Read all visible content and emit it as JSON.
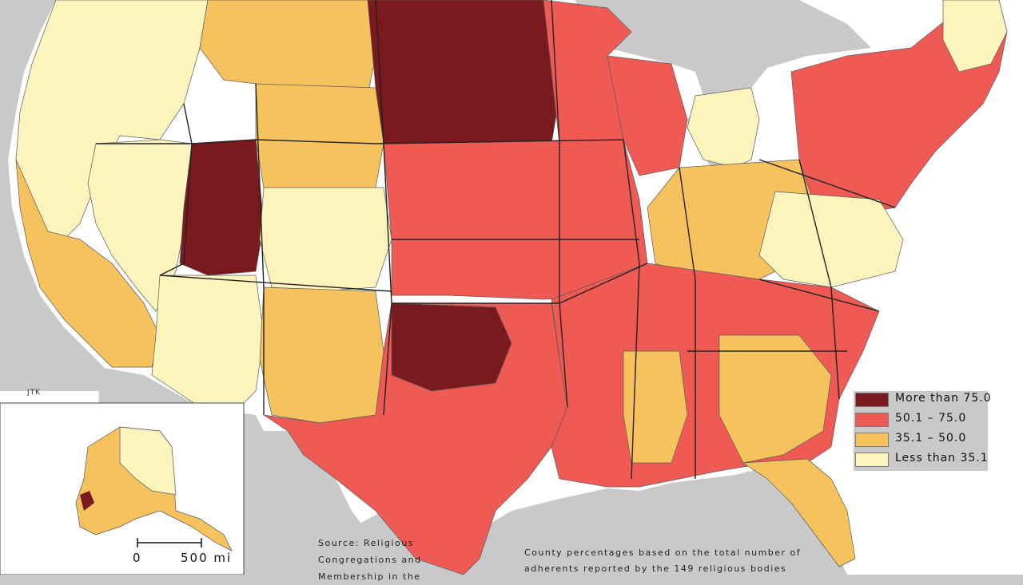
{
  "map": {
    "credit": "JTK",
    "legend": {
      "items": [
        {
          "label": "More than 75.0",
          "color": "#7b1a1e"
        },
        {
          "label": "50.1 – 75.0",
          "color": "#ef5a55"
        },
        {
          "label": "35.1 – 50.0",
          "color": "#f6c25e"
        },
        {
          "label": "Less than 35.1",
          "color": "#fcf4bd"
        }
      ]
    },
    "scale": {
      "zero": "0",
      "distance": "500 mi"
    },
    "source_note": "Source: Religious Congregations and Membership in the",
    "bottom_note": "County percentages based on the total number of adherents reported by the 149 religious bodies",
    "colors": {
      "water": "#c9c9c9",
      "land_background": "#ffffff",
      "border": "#333333"
    }
  }
}
